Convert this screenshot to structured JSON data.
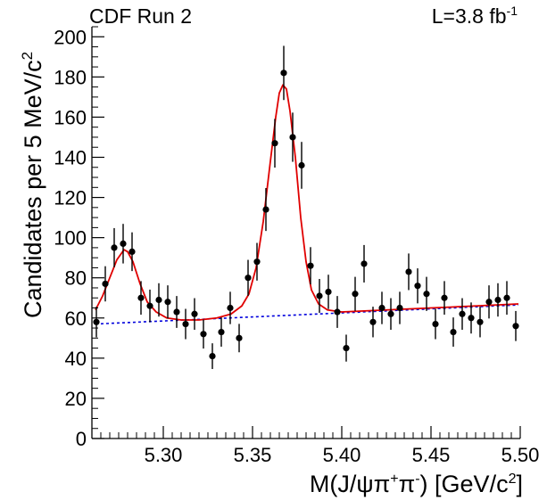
{
  "header": {
    "left_label": "CDF Run 2",
    "right_label": "L=3.8 fb",
    "right_label_sup": "-1"
  },
  "chart_data": {
    "type": "scatter",
    "title": "",
    "xlabel": {
      "parts": [
        "M(J/ψπ",
        "+",
        "π",
        "-",
        ") [GeV/c",
        "2",
        "]"
      ]
    },
    "ylabel": {
      "parts": [
        "Candidates per 5 MeV/c",
        "2"
      ]
    },
    "xlim": [
      5.26,
      5.5
    ],
    "ylim": [
      0,
      205
    ],
    "x_tick_labels": [
      "5.30",
      "5.35",
      "5.40",
      "5.45",
      "5.50"
    ],
    "x_tick_values": [
      5.3,
      5.35,
      5.4,
      5.45,
      5.5
    ],
    "y_tick_labels": [
      "0",
      "20",
      "40",
      "60",
      "80",
      "100",
      "120",
      "140",
      "160",
      "180",
      "200"
    ],
    "y_tick_values": [
      0,
      20,
      40,
      60,
      80,
      100,
      120,
      140,
      160,
      180,
      200
    ],
    "grid": false,
    "series": [
      {
        "kind": "data_points",
        "color": "#000000",
        "points": [
          {
            "x": 5.2625,
            "y": 58
          },
          {
            "x": 5.2675,
            "y": 77
          },
          {
            "x": 5.2725,
            "y": 95
          },
          {
            "x": 5.2775,
            "y": 97
          },
          {
            "x": 5.2825,
            "y": 93
          },
          {
            "x": 5.2875,
            "y": 70
          },
          {
            "x": 5.2925,
            "y": 66
          },
          {
            "x": 5.2975,
            "y": 69
          },
          {
            "x": 5.3025,
            "y": 68
          },
          {
            "x": 5.3075,
            "y": 63
          },
          {
            "x": 5.3125,
            "y": 57
          },
          {
            "x": 5.3175,
            "y": 62
          },
          {
            "x": 5.3225,
            "y": 52
          },
          {
            "x": 5.3275,
            "y": 41
          },
          {
            "x": 5.3325,
            "y": 53
          },
          {
            "x": 5.3375,
            "y": 65
          },
          {
            "x": 5.3425,
            "y": 50
          },
          {
            "x": 5.3475,
            "y": 80
          },
          {
            "x": 5.3525,
            "y": 88
          },
          {
            "x": 5.3575,
            "y": 114
          },
          {
            "x": 5.3625,
            "y": 147
          },
          {
            "x": 5.3675,
            "y": 182
          },
          {
            "x": 5.3725,
            "y": 150
          },
          {
            "x": 5.3775,
            "y": 136
          },
          {
            "x": 5.3825,
            "y": 86
          },
          {
            "x": 5.3875,
            "y": 71
          },
          {
            "x": 5.3925,
            "y": 73
          },
          {
            "x": 5.3975,
            "y": 63
          },
          {
            "x": 5.4025,
            "y": 45
          },
          {
            "x": 5.4075,
            "y": 72
          },
          {
            "x": 5.4125,
            "y": 87
          },
          {
            "x": 5.4175,
            "y": 58
          },
          {
            "x": 5.4225,
            "y": 65
          },
          {
            "x": 5.4275,
            "y": 62
          },
          {
            "x": 5.4325,
            "y": 65
          },
          {
            "x": 5.4375,
            "y": 83
          },
          {
            "x": 5.4425,
            "y": 76
          },
          {
            "x": 5.4475,
            "y": 72
          },
          {
            "x": 5.4525,
            "y": 57
          },
          {
            "x": 5.4575,
            "y": 70
          },
          {
            "x": 5.4625,
            "y": 53
          },
          {
            "x": 5.4675,
            "y": 62
          },
          {
            "x": 5.4725,
            "y": 60
          },
          {
            "x": 5.4775,
            "y": 58
          },
          {
            "x": 5.4825,
            "y": 68
          },
          {
            "x": 5.4875,
            "y": 69
          },
          {
            "x": 5.4925,
            "y": 70
          },
          {
            "x": 5.4975,
            "y": 56
          }
        ]
      },
      {
        "kind": "fit_curve",
        "color": "#e00000",
        "points": [
          {
            "x": 5.262,
            "y": 64
          },
          {
            "x": 5.266,
            "y": 71
          },
          {
            "x": 5.27,
            "y": 80
          },
          {
            "x": 5.274,
            "y": 89
          },
          {
            "x": 5.278,
            "y": 94
          },
          {
            "x": 5.28,
            "y": 93
          },
          {
            "x": 5.283,
            "y": 88
          },
          {
            "x": 5.287,
            "y": 77
          },
          {
            "x": 5.291,
            "y": 68
          },
          {
            "x": 5.296,
            "y": 63
          },
          {
            "x": 5.302,
            "y": 60
          },
          {
            "x": 5.31,
            "y": 59
          },
          {
            "x": 5.32,
            "y": 59
          },
          {
            "x": 5.33,
            "y": 60
          },
          {
            "x": 5.338,
            "y": 62
          },
          {
            "x": 5.344,
            "y": 66
          },
          {
            "x": 5.348,
            "y": 72
          },
          {
            "x": 5.352,
            "y": 85
          },
          {
            "x": 5.356,
            "y": 108
          },
          {
            "x": 5.36,
            "y": 138
          },
          {
            "x": 5.363,
            "y": 160
          },
          {
            "x": 5.365,
            "y": 172
          },
          {
            "x": 5.367,
            "y": 176
          },
          {
            "x": 5.369,
            "y": 174
          },
          {
            "x": 5.371,
            "y": 163
          },
          {
            "x": 5.374,
            "y": 140
          },
          {
            "x": 5.377,
            "y": 110
          },
          {
            "x": 5.38,
            "y": 88
          },
          {
            "x": 5.383,
            "y": 74
          },
          {
            "x": 5.387,
            "y": 67
          },
          {
            "x": 5.392,
            "y": 64
          },
          {
            "x": 5.4,
            "y": 63
          },
          {
            "x": 5.425,
            "y": 64
          },
          {
            "x": 5.45,
            "y": 65
          },
          {
            "x": 5.475,
            "y": 66
          },
          {
            "x": 5.499,
            "y": 67
          }
        ]
      },
      {
        "kind": "background",
        "color": "#0000dd",
        "points": [
          {
            "x": 5.262,
            "y": 57
          },
          {
            "x": 5.499,
            "y": 66.5
          }
        ]
      }
    ]
  }
}
